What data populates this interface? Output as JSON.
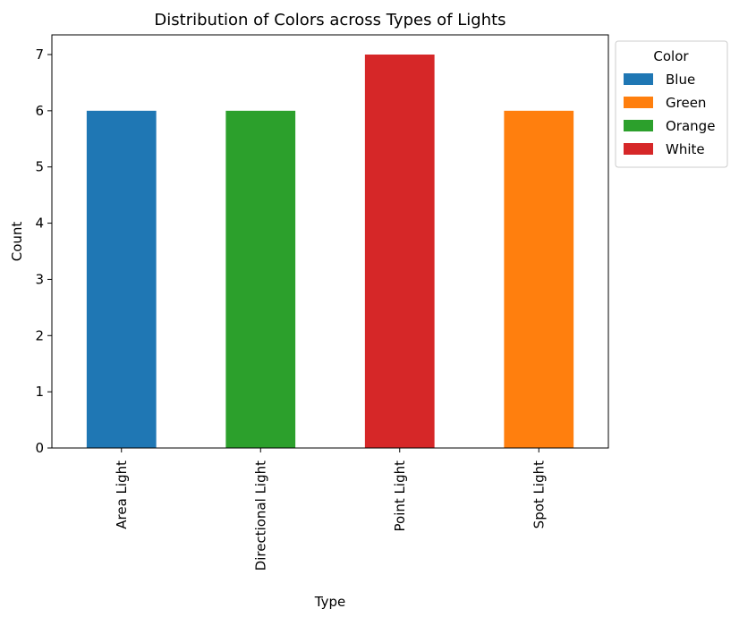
{
  "chart_data": {
    "type": "bar",
    "stacked": true,
    "title": "Distribution of Colors across Types of Lights",
    "xlabel": "Type",
    "ylabel": "Count",
    "categories": [
      "Area Light",
      "Directional Light",
      "Point Light",
      "Spot Light"
    ],
    "ylim": [
      0,
      7.35
    ],
    "yticks": [
      0,
      1,
      2,
      3,
      4,
      5,
      6,
      7
    ],
    "legend": {
      "title": "Color",
      "placement": "outside top-right"
    },
    "series": [
      {
        "name": "Blue",
        "color": "#1f77b4",
        "values": [
          6,
          0,
          0,
          0
        ]
      },
      {
        "name": "Green",
        "color": "#ff7f0e",
        "values": [
          0,
          0,
          0,
          6
        ]
      },
      {
        "name": "Orange",
        "color": "#2ca02c",
        "values": [
          0,
          6,
          0,
          0
        ]
      },
      {
        "name": "White",
        "color": "#d62728",
        "values": [
          0,
          0,
          7,
          0
        ]
      }
    ]
  }
}
